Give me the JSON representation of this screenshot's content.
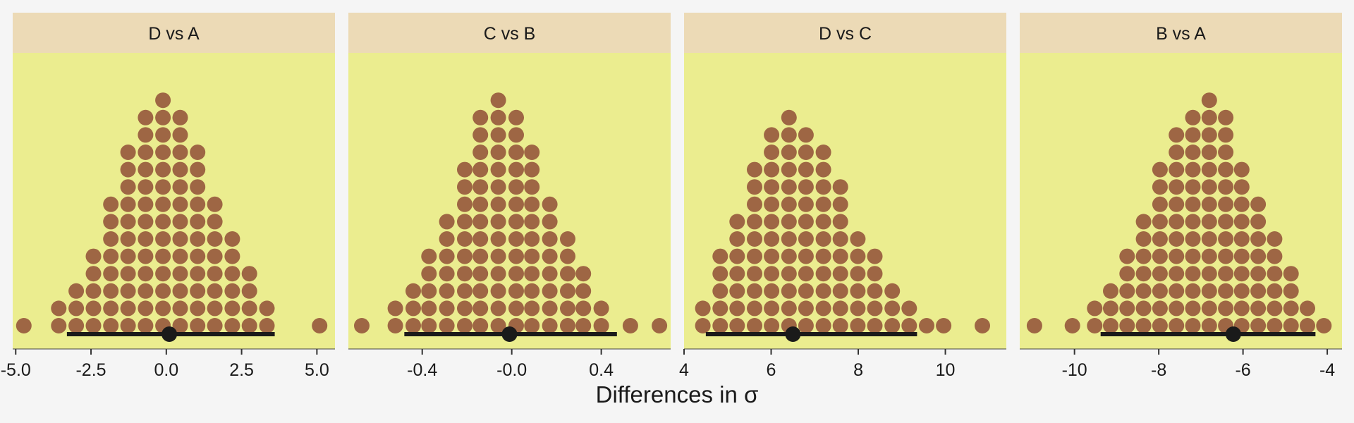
{
  "xlabel": "Differences in σ",
  "colors": {
    "background": "#f5f5f5",
    "panel": "#ebed8f",
    "strip": "#ecdab6",
    "dot": "#9e6644",
    "interval": "#1a1a1a"
  },
  "chart_data": [
    {
      "type": "dotplot",
      "title": "D vs A",
      "xlim": [
        -5.1,
        5.6
      ],
      "ticks": [
        -5.0,
        -2.5,
        0.0,
        2.5,
        5.0
      ],
      "tick_labels": [
        "-5.0",
        "-2.5",
        "0.0",
        "2.5",
        "5.0"
      ],
      "dot_columns": [
        {
          "x": -4.73,
          "count": 1
        },
        {
          "x": -3.57,
          "count": 2
        },
        {
          "x": -2.99,
          "count": 3
        },
        {
          "x": -2.42,
          "count": 5
        },
        {
          "x": -1.84,
          "count": 8
        },
        {
          "x": -1.27,
          "count": 11
        },
        {
          "x": -0.69,
          "count": 13
        },
        {
          "x": -0.11,
          "count": 14
        },
        {
          "x": 0.46,
          "count": 13
        },
        {
          "x": 1.04,
          "count": 11
        },
        {
          "x": 1.61,
          "count": 8
        },
        {
          "x": 2.19,
          "count": 6
        },
        {
          "x": 2.76,
          "count": 4
        },
        {
          "x": 3.34,
          "count": 2
        },
        {
          "x": 5.09,
          "count": 1
        }
      ],
      "interval": {
        "low": -3.3,
        "high": 3.6,
        "point": 0.1
      }
    },
    {
      "type": "dotplot",
      "title": "C vs B",
      "xlim": [
        -0.73,
        0.71
      ],
      "ticks": [
        -0.4,
        0.0,
        0.4
      ],
      "tick_labels": [
        "-0.4",
        "-0.0",
        "0.4"
      ],
      "dot_columns": [
        {
          "x": -0.67,
          "count": 1
        },
        {
          "x": -0.52,
          "count": 2
        },
        {
          "x": -0.44,
          "count": 3
        },
        {
          "x": -0.37,
          "count": 5
        },
        {
          "x": -0.29,
          "count": 7
        },
        {
          "x": -0.21,
          "count": 10
        },
        {
          "x": -0.14,
          "count": 13
        },
        {
          "x": -0.06,
          "count": 14
        },
        {
          "x": 0.02,
          "count": 13
        },
        {
          "x": 0.09,
          "count": 11
        },
        {
          "x": 0.17,
          "count": 8
        },
        {
          "x": 0.25,
          "count": 6
        },
        {
          "x": 0.32,
          "count": 4
        },
        {
          "x": 0.4,
          "count": 2
        },
        {
          "x": 0.53,
          "count": 1
        },
        {
          "x": 0.66,
          "count": 1
        }
      ],
      "interval": {
        "low": -0.48,
        "high": 0.47,
        "point": -0.01
      }
    },
    {
      "type": "dotplot",
      "title": "D vs C",
      "xlim": [
        4.0,
        11.4
      ],
      "ticks": [
        4,
        6,
        8,
        10
      ],
      "tick_labels": [
        "4",
        "6",
        "8",
        "10"
      ],
      "dot_columns": [
        {
          "x": 4.43,
          "count": 2
        },
        {
          "x": 4.83,
          "count": 5
        },
        {
          "x": 5.22,
          "count": 7
        },
        {
          "x": 5.62,
          "count": 10
        },
        {
          "x": 6.01,
          "count": 12
        },
        {
          "x": 6.41,
          "count": 13
        },
        {
          "x": 6.8,
          "count": 12
        },
        {
          "x": 7.2,
          "count": 11
        },
        {
          "x": 7.59,
          "count": 9
        },
        {
          "x": 7.99,
          "count": 6
        },
        {
          "x": 8.38,
          "count": 5
        },
        {
          "x": 8.78,
          "count": 3
        },
        {
          "x": 9.17,
          "count": 2
        },
        {
          "x": 9.57,
          "count": 1
        },
        {
          "x": 9.96,
          "count": 1
        },
        {
          "x": 10.85,
          "count": 1
        }
      ],
      "interval": {
        "low": 4.5,
        "high": 9.35,
        "point": 6.5
      }
    },
    {
      "type": "dotplot",
      "title": "B vs A",
      "xlim": [
        -11.3,
        -3.65
      ],
      "ticks": [
        -10,
        -8,
        -6,
        -4
      ],
      "tick_labels": [
        "-10",
        "-8",
        "-6",
        "-4"
      ],
      "dot_columns": [
        {
          "x": -10.95,
          "count": 1
        },
        {
          "x": -10.05,
          "count": 1
        },
        {
          "x": -9.52,
          "count": 2
        },
        {
          "x": -9.14,
          "count": 3
        },
        {
          "x": -8.75,
          "count": 5
        },
        {
          "x": -8.36,
          "count": 7
        },
        {
          "x": -7.97,
          "count": 10
        },
        {
          "x": -7.58,
          "count": 12
        },
        {
          "x": -7.19,
          "count": 13
        },
        {
          "x": -6.8,
          "count": 14
        },
        {
          "x": -6.41,
          "count": 13
        },
        {
          "x": -6.03,
          "count": 10
        },
        {
          "x": -5.64,
          "count": 8
        },
        {
          "x": -5.25,
          "count": 6
        },
        {
          "x": -4.86,
          "count": 4
        },
        {
          "x": -4.47,
          "count": 2
        },
        {
          "x": -4.08,
          "count": 1
        }
      ],
      "interval": {
        "low": -9.38,
        "high": -4.28,
        "point": -6.23
      }
    }
  ]
}
